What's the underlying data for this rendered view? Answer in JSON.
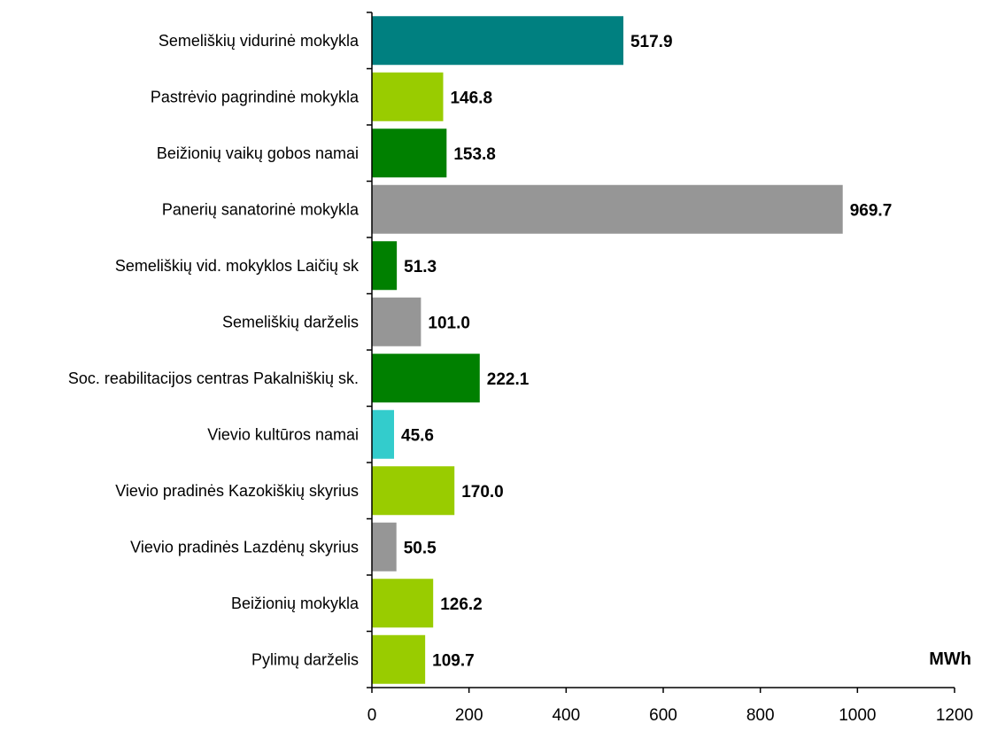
{
  "chart_data": {
    "type": "bar",
    "orientation": "horizontal",
    "title": "",
    "xlabel": "",
    "ylabel": "",
    "unit_label": "MWh",
    "xlim": [
      0,
      1200
    ],
    "x_ticks": [
      0,
      200,
      400,
      600,
      800,
      1000,
      1200
    ],
    "grid": false,
    "legend": "none",
    "categories": [
      "Semeliškių vidurinė mokykla",
      "Pastrėvio pagrindinė mokykla",
      "Beižionių vaikų gobos namai",
      "Panerių sanatorinė mokykla",
      "Semeliškių vid. mokyklos Laičių sk",
      "Semeliškių darželis",
      "Soc. reabilitacijos centras Pakalniškių sk.",
      "Vievio kultūros namai",
      "Vievio pradinės Kazokiškių skyrius",
      "Vievio pradinės Lazdėnų skyrius",
      "Beižionių mokykla",
      "Pylimų darželis"
    ],
    "values": [
      517.9,
      146.8,
      153.8,
      969.7,
      51.3,
      101.0,
      222.1,
      45.6,
      170.0,
      50.5,
      126.2,
      109.7
    ],
    "value_labels": [
      "517.9",
      "146.8",
      "153.8",
      "969.7",
      "51.3",
      "101.0",
      "222.1",
      "45.6",
      "170.0",
      "50.5",
      "126.2",
      "109.7"
    ],
    "bar_colors": [
      "#008080",
      "#99CC00",
      "#008000",
      "#969696",
      "#008000",
      "#969696",
      "#008000",
      "#33CCCC",
      "#99CC00",
      "#969696",
      "#99CC00",
      "#99CC00"
    ]
  }
}
